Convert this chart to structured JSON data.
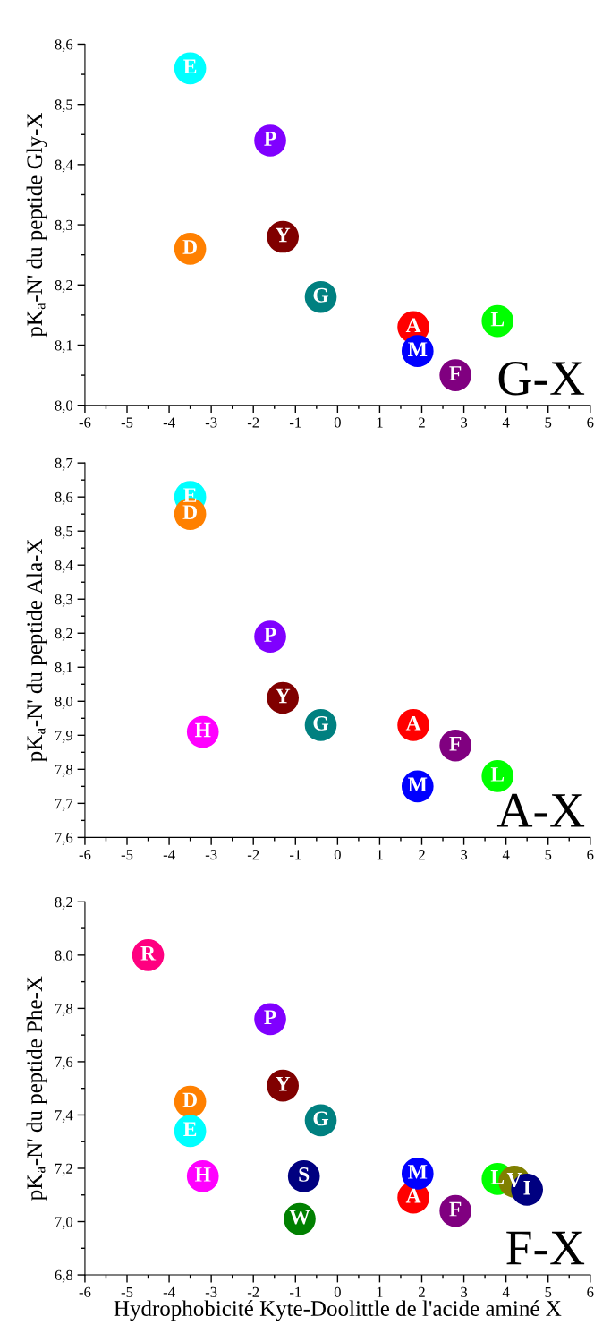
{
  "chart_data": [
    {
      "type": "scatter",
      "ylabel": "pK$_{a}$-N' du peptide Gly-X",
      "annotations": [
        "G-X"
      ],
      "marker": "circle",
      "legend": false,
      "grid": false,
      "xlim": [
        -6,
        6
      ],
      "xticks": [
        -6,
        -5,
        -4,
        -3,
        -2,
        -1,
        0,
        1,
        2,
        3,
        4,
        5,
        6
      ],
      "ylim": [
        8.0,
        8.6
      ],
      "yticks": [
        {
          "value": 8.0,
          "label": "8,0"
        },
        {
          "value": 8.1,
          "label": "8,1"
        },
        {
          "value": 8.2,
          "label": "8,2"
        },
        {
          "value": 8.3,
          "label": "8,3"
        },
        {
          "value": 8.4,
          "label": "8,4"
        },
        {
          "value": 8.5,
          "label": "8,5"
        },
        {
          "value": 8.6,
          "label": "8,6"
        }
      ],
      "series": [
        {
          "name": "E",
          "color": "#00ffff",
          "x": [
            -3.5
          ],
          "values": [
            8.56
          ]
        },
        {
          "name": "P",
          "color": "#8000ff",
          "x": [
            -1.6
          ],
          "values": [
            8.44
          ]
        },
        {
          "name": "D",
          "color": "#ff8000",
          "x": [
            -3.5
          ],
          "values": [
            8.26
          ]
        },
        {
          "name": "Y",
          "color": "#800000",
          "x": [
            -1.3
          ],
          "values": [
            8.28
          ]
        },
        {
          "name": "G",
          "color": "#008080",
          "x": [
            -0.4
          ],
          "values": [
            8.18
          ]
        },
        {
          "name": "A",
          "color": "#ff0000",
          "x": [
            1.8
          ],
          "values": [
            8.13
          ]
        },
        {
          "name": "L",
          "color": "#00ff00",
          "x": [
            3.8
          ],
          "values": [
            8.14
          ]
        },
        {
          "name": "M",
          "color": "#0000ff",
          "x": [
            1.9
          ],
          "values": [
            8.09
          ]
        },
        {
          "name": "F",
          "color": "#800080",
          "x": [
            2.8
          ],
          "values": [
            8.05
          ]
        }
      ]
    },
    {
      "type": "scatter",
      "ylabel": "pK$_{a}$-N' du peptide Ala-X",
      "annotations": [
        "A-X"
      ],
      "marker": "circle",
      "legend": false,
      "grid": false,
      "xlim": [
        -6,
        6
      ],
      "xticks": [
        -6,
        -5,
        -4,
        -3,
        -2,
        -1,
        0,
        1,
        2,
        3,
        4,
        5,
        6
      ],
      "ylim": [
        7.6,
        8.7
      ],
      "yticks": [
        {
          "value": 7.6,
          "label": "7,6"
        },
        {
          "value": 7.7,
          "label": "7,7"
        },
        {
          "value": 7.8,
          "label": "7,8"
        },
        {
          "value": 7.9,
          "label": "7,9"
        },
        {
          "value": 8.0,
          "label": "8,0"
        },
        {
          "value": 8.1,
          "label": "8,1"
        },
        {
          "value": 8.2,
          "label": "8,2"
        },
        {
          "value": 8.3,
          "label": "8,3"
        },
        {
          "value": 8.4,
          "label": "8,4"
        },
        {
          "value": 8.5,
          "label": "8,5"
        },
        {
          "value": 8.6,
          "label": "8,6"
        },
        {
          "value": 8.7,
          "label": "8,7"
        }
      ],
      "series": [
        {
          "name": "E",
          "color": "#00ffff",
          "x": [
            -3.5
          ],
          "values": [
            8.6
          ]
        },
        {
          "name": "D",
          "color": "#ff8000",
          "x": [
            -3.5
          ],
          "values": [
            8.55
          ]
        },
        {
          "name": "P",
          "color": "#8000ff",
          "x": [
            -1.6
          ],
          "values": [
            8.19
          ]
        },
        {
          "name": "Y",
          "color": "#800000",
          "x": [
            -1.3
          ],
          "values": [
            8.01
          ]
        },
        {
          "name": "H",
          "color": "#ff00ff",
          "x": [
            -3.2
          ],
          "values": [
            7.91
          ]
        },
        {
          "name": "G",
          "color": "#008080",
          "x": [
            -0.4
          ],
          "values": [
            7.93
          ]
        },
        {
          "name": "A",
          "color": "#ff0000",
          "x": [
            1.8
          ],
          "values": [
            7.93
          ]
        },
        {
          "name": "F",
          "color": "#800080",
          "x": [
            2.8
          ],
          "values": [
            7.87
          ]
        },
        {
          "name": "L",
          "color": "#00ff00",
          "x": [
            3.8
          ],
          "values": [
            7.78
          ]
        },
        {
          "name": "M",
          "color": "#0000ff",
          "x": [
            1.9
          ],
          "values": [
            7.75
          ]
        }
      ]
    },
    {
      "type": "scatter",
      "xlabel": "Hydrophobicité Kyte-Doolittle de l'acide aminé X",
      "ylabel": "pK$_{a}$-N' du peptide Phe-X",
      "annotations": [
        "F-X"
      ],
      "marker": "circle",
      "legend": false,
      "grid": false,
      "xlim": [
        -6,
        6
      ],
      "xticks": [
        -6,
        -5,
        -4,
        -3,
        -2,
        -1,
        0,
        1,
        2,
        3,
        4,
        5,
        6
      ],
      "ylim": [
        6.8,
        8.2
      ],
      "yticks": [
        {
          "value": 6.8,
          "label": "6,8"
        },
        {
          "value": 7.0,
          "label": "7,0"
        },
        {
          "value": 7.2,
          "label": "7,2"
        },
        {
          "value": 7.4,
          "label": "7,4"
        },
        {
          "value": 7.6,
          "label": "7,6"
        },
        {
          "value": 7.8,
          "label": "7,8"
        },
        {
          "value": 8.0,
          "label": "8,0"
        },
        {
          "value": 8.2,
          "label": "8,2"
        }
      ],
      "series": [
        {
          "name": "R",
          "color": "#ff0080",
          "x": [
            -4.5
          ],
          "values": [
            8.0
          ]
        },
        {
          "name": "P",
          "color": "#8000ff",
          "x": [
            -1.6
          ],
          "values": [
            7.76
          ]
        },
        {
          "name": "Y",
          "color": "#800000",
          "x": [
            -1.3
          ],
          "values": [
            7.51
          ]
        },
        {
          "name": "D",
          "color": "#ff8000",
          "x": [
            -3.5
          ],
          "values": [
            7.45
          ]
        },
        {
          "name": "E",
          "color": "#00ffff",
          "x": [
            -3.5
          ],
          "values": [
            7.34
          ]
        },
        {
          "name": "G",
          "color": "#008080",
          "x": [
            -0.4
          ],
          "values": [
            7.38
          ]
        },
        {
          "name": "H",
          "color": "#ff00ff",
          "x": [
            -3.2
          ],
          "values": [
            7.17
          ]
        },
        {
          "name": "S",
          "color": "#000080",
          "x": [
            -0.8
          ],
          "values": [
            7.17
          ]
        },
        {
          "name": "W",
          "color": "#008000",
          "x": [
            -0.9
          ],
          "values": [
            7.01
          ]
        },
        {
          "name": "A",
          "color": "#ff0000",
          "x": [
            1.8
          ],
          "values": [
            7.09
          ]
        },
        {
          "name": "M",
          "color": "#0000ff",
          "x": [
            1.9
          ],
          "values": [
            7.18
          ]
        },
        {
          "name": "F",
          "color": "#800080",
          "x": [
            2.8
          ],
          "values": [
            7.04
          ]
        },
        {
          "name": "L",
          "color": "#00ff00",
          "x": [
            3.8
          ],
          "values": [
            7.16
          ]
        },
        {
          "name": "V",
          "color": "#808000",
          "x": [
            4.2
          ],
          "values": [
            7.15
          ]
        },
        {
          "name": "I",
          "color": "#000080",
          "x": [
            4.5
          ],
          "values": [
            7.12
          ]
        }
      ]
    }
  ]
}
